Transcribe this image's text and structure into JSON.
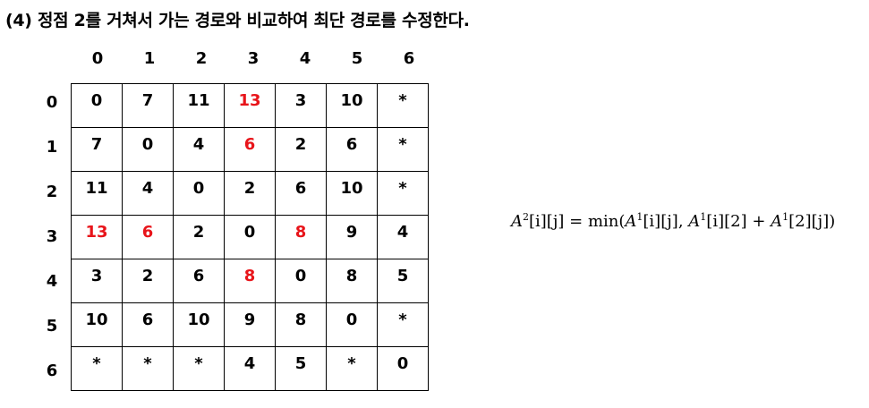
{
  "title": "(4) 정점 2를 거쳐서 가는 경로와 비교하여 최단 경로를 수정한다.",
  "column_headers": [
    "0",
    "1",
    "2",
    "3",
    "4",
    "5",
    "6"
  ],
  "row_headers": [
    "0",
    "1",
    "2",
    "3",
    "4",
    "5",
    "6"
  ],
  "matrix": [
    [
      "0",
      "7",
      "11",
      "13",
      "3",
      "10",
      "*"
    ],
    [
      "7",
      "0",
      "4",
      "6",
      "2",
      "6",
      "*"
    ],
    [
      "11",
      "4",
      "0",
      "2",
      "6",
      "10",
      "*"
    ],
    [
      "13",
      "6",
      "2",
      "0",
      "8",
      "9",
      "4"
    ],
    [
      "3",
      "2",
      "6",
      "8",
      "0",
      "8",
      "5"
    ],
    [
      "10",
      "6",
      "10",
      "9",
      "8",
      "0",
      "*"
    ],
    [
      "*",
      "*",
      "*",
      "4",
      "5",
      "*",
      "0"
    ]
  ],
  "highlighted_cells": [
    [
      0,
      3
    ],
    [
      1,
      3
    ],
    [
      3,
      0
    ],
    [
      3,
      1
    ],
    [
      3,
      4
    ],
    [
      4,
      3
    ]
  ],
  "highlight_color": "#e8141a",
  "formula": {
    "A": "A",
    "sup2": "2",
    "sup1": "1",
    "lhs_index": "[i][j]",
    "equals": " = min(",
    "term1_index": "[i][j],",
    "term2_index": "[i][2] +",
    "term3_index": "[2][j])"
  }
}
